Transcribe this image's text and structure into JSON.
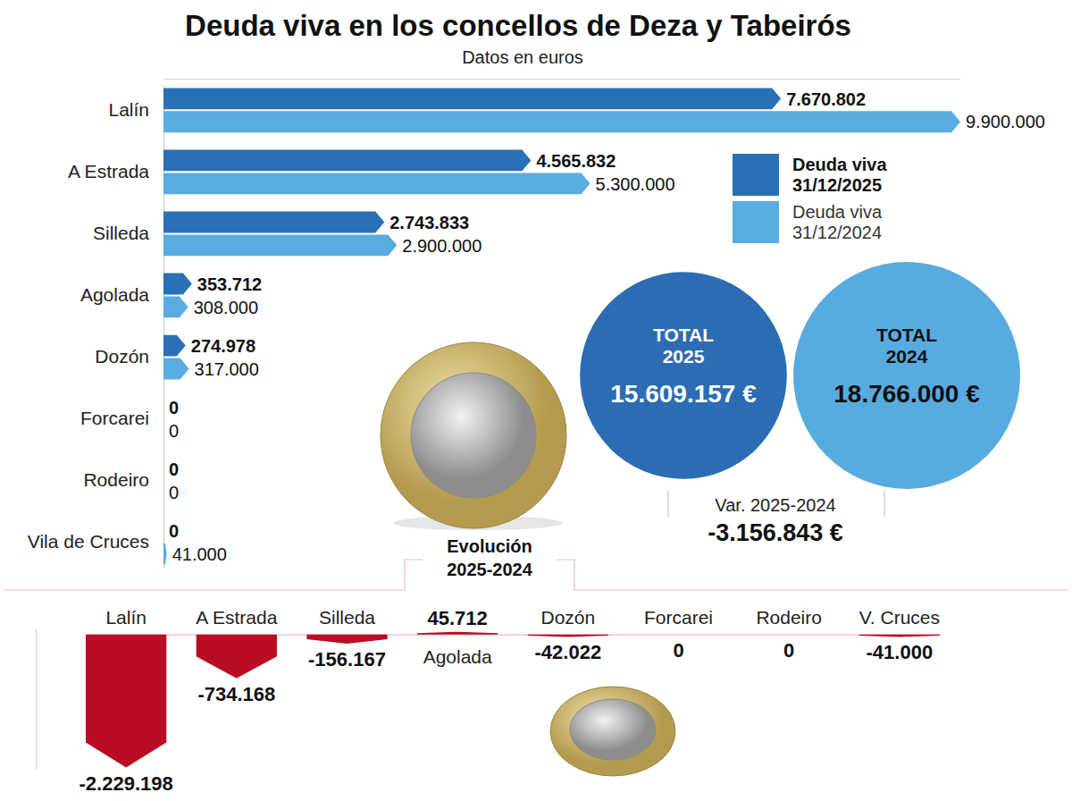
{
  "chart_data": [
    {
      "type": "bar",
      "title": "Deuda viva en los concellos de Deza y Tabeirós",
      "subtitle": "Datos en euros",
      "orientation": "horizontal",
      "categories": [
        "Lalín",
        "A Estrada",
        "Silleda",
        "Agolada",
        "Dozón",
        "Forcarei",
        "Rodeiro",
        "Vila de Cruces"
      ],
      "series": [
        {
          "name": "Deuda viva 31/12/2025",
          "color": "#2a70b6",
          "values": [
            7670802,
            4565832,
            2743833,
            353712,
            274978,
            0,
            0,
            0
          ],
          "value_labels": [
            "7.670.802",
            "4.565.832",
            "2.743.833",
            "353.712",
            "274.978",
            "0",
            "0",
            "0"
          ]
        },
        {
          "name": "Deuda viva 31/12/2024",
          "color": "#59ace1",
          "values": [
            9900000,
            5300000,
            2900000,
            308000,
            317000,
            0,
            0,
            41000
          ],
          "value_labels": [
            "9.900.000",
            "5.300.000",
            "2.900.000",
            "308.000",
            "317.000",
            "0",
            "0",
            "41.000"
          ]
        }
      ],
      "xlim": [
        0,
        9900000
      ],
      "data_labels": true,
      "tick_labels": "y",
      "legend": "upper right"
    },
    {
      "type": "bar",
      "title": "Evolución 2025-2024",
      "categories": [
        "Lalín",
        "A Estrada",
        "Silleda",
        "Agolada",
        "Dozón",
        "Forcarei",
        "Rodeiro",
        "V. Cruces"
      ],
      "values": [
        -2229198,
        -734168,
        -156167,
        45712,
        -42022,
        0,
        0,
        -41000
      ],
      "value_labels": [
        "-2.229.198",
        "-734.168",
        "-156.167",
        "45.712",
        "-42.022",
        "0",
        "0",
        "-41.000"
      ],
      "color": "#b80d24",
      "ylim": [
        -2250000,
        100000
      ],
      "data_labels": true,
      "tick_labels": "x"
    },
    {
      "type": "bubble",
      "categories": [
        "TOTAL 2025",
        "TOTAL 2024"
      ],
      "values": [
        15609157,
        18766000
      ],
      "value_labels": [
        "15.609.157 €",
        "18.766.000 €"
      ],
      "colors": [
        "#2b6cb3",
        "#58abe0"
      ],
      "data_labels": true,
      "annotations": [
        {
          "text": "Var. 2025-2024",
          "value": -3156843,
          "value_label": "-3.156.843 €"
        }
      ]
    }
  ]
}
